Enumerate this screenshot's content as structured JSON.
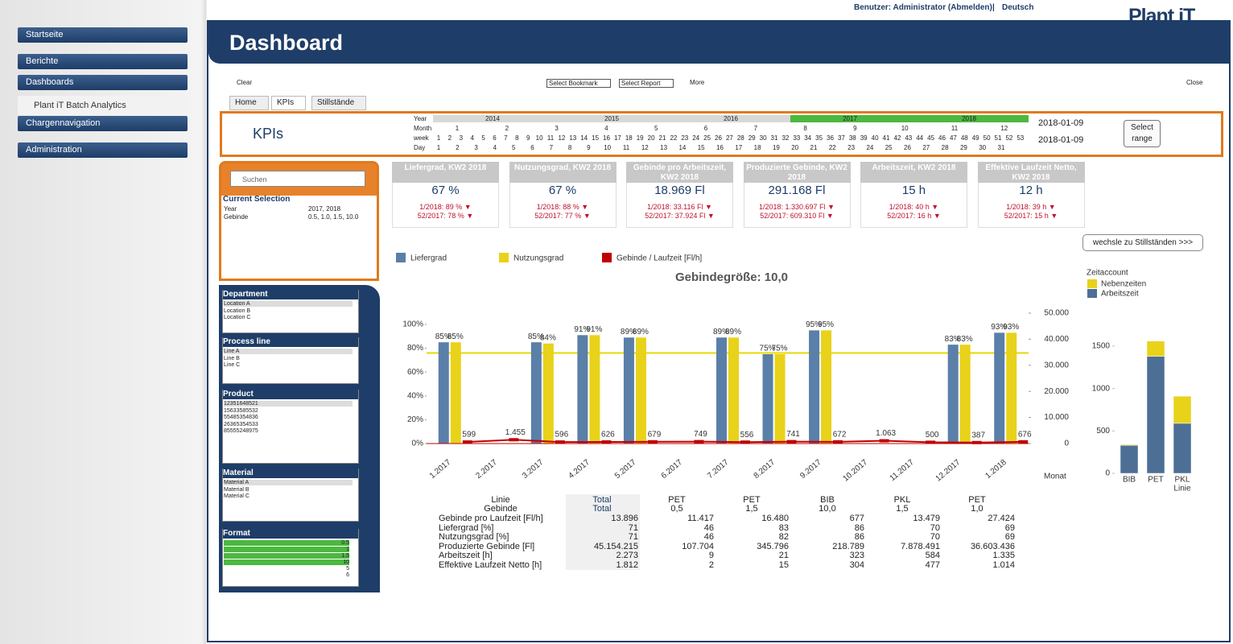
{
  "header": {
    "user": "Benutzer: Administrator (Abmelden)",
    "separator": "|",
    "language": "Deutsch",
    "logo": "Plant iT",
    "title": "Dashboard"
  },
  "nav": [
    "Startseite",
    "Berichte",
    "Dashboards",
    "Plant iT Batch Analytics",
    "Chargennavigation",
    "Administration"
  ],
  "toolbar": {
    "clear": "Clear",
    "bookmark": "Select Bookmark",
    "report": "Select Report",
    "more": "More",
    "close": "Close"
  },
  "tabs": [
    "Home",
    "KPIs",
    "Stillstände"
  ],
  "selection_bar": {
    "title": "KPIs",
    "row_labels": [
      "Year",
      "Month",
      "week",
      "Day"
    ],
    "years": [
      2014,
      2015,
      2016,
      2017,
      2018
    ],
    "months": [
      1,
      2,
      3,
      4,
      5,
      6,
      7,
      8,
      9,
      10,
      11,
      12
    ],
    "weeks": [
      1,
      2,
      3,
      4,
      5,
      6,
      7,
      8,
      9,
      10,
      11,
      12,
      13,
      14,
      15,
      16,
      17,
      18,
      19,
      20,
      21,
      22,
      23,
      24,
      25,
      26,
      27,
      28,
      29,
      30,
      31,
      32,
      33,
      34,
      35,
      36,
      37,
      38,
      39,
      40,
      41,
      42,
      43,
      44,
      45,
      46,
      47,
      48,
      49,
      50,
      51,
      52,
      53
    ],
    "days": [
      1,
      2,
      3,
      4,
      5,
      6,
      7,
      8,
      9,
      10,
      11,
      12,
      13,
      14,
      15,
      16,
      17,
      18,
      19,
      20,
      21,
      22,
      23,
      24,
      25,
      26,
      27,
      28,
      29,
      30,
      31
    ],
    "date_from": "2018-01-09",
    "date_to": "2018-01-09",
    "select_range": "Select range"
  },
  "search": "Suchen",
  "current_selection": {
    "title": "Current Selection",
    "rows": [
      [
        "Year",
        "2017, 2018"
      ],
      [
        "Gebinde",
        "0.5, 1.0, 1.5, 10.0"
      ]
    ]
  },
  "filters": [
    {
      "title": "Department",
      "items": [
        "Location A",
        "Location B",
        "Location C"
      ]
    },
    {
      "title": "Process line",
      "items": [
        "Line A",
        "Line B",
        "Line C"
      ]
    },
    {
      "title": "Product",
      "items": [
        "12351648521",
        "15633585532",
        "55485354836",
        "26365354533",
        "85555248975"
      ]
    },
    {
      "title": "Material",
      "items": [
        "Material A",
        "Material B",
        "Material C"
      ]
    },
    {
      "title": "Format",
      "items": [
        "0.5",
        "1",
        "1.5",
        "10",
        "5",
        "6"
      ]
    }
  ],
  "kpis": [
    {
      "title": "Liefergrad, KW2 2018",
      "value": "67 %",
      "prev1": "1/2018: 89 % ▼",
      "prev2": "52/2017: 78 % ▼"
    },
    {
      "title": "Nutzungsgrad, KW2 2018",
      "value": "67 %",
      "prev1": "1/2018: 88 % ▼",
      "prev2": "52/2017: 77 % ▼"
    },
    {
      "title": "Gebinde pro Arbeitszeit, KW2 2018",
      "value": "18.969 Fl",
      "prev1": "1/2018: 33.116 Fl ▼",
      "prev2": "52/2017: 37.924 Fl ▼"
    },
    {
      "title": "Produzierte Gebinde, KW2 2018",
      "value": "291.168 Fl",
      "prev1": "1/2018: 1.330.697 Fl ▼",
      "prev2": "52/2017: 609.310 Fl ▼"
    },
    {
      "title": "Arbeitszeit, KW2 2018",
      "value": "15 h",
      "prev1": "1/2018: 40 h ▼",
      "prev2": "52/2017: 16 h ▼"
    },
    {
      "title": "Effektive Laufzeit Netto, KW2 2018",
      "value": "12 h",
      "prev1": "1/2018: 39 h ▼",
      "prev2": "52/2017: 15 h ▼"
    }
  ],
  "switch_button": "wechsle zu Stillständen >>>",
  "chart_data": [
    {
      "type": "bar",
      "title": "Gebindegröße: 10,0",
      "x_label": "Monat",
      "legend": "top",
      "categories": [
        "1.2017",
        "2.2017",
        "3.2017",
        "4.2017",
        "5.2017",
        "6.2017",
        "7.2017",
        "8.2017",
        "9.2017",
        "10.2017",
        "11.2017",
        "12.2017",
        "1.2018"
      ],
      "series": [
        {
          "name": "Liefergrad",
          "color": "#5a7fa8",
          "values": [
            85,
            null,
            85,
            91,
            89,
            null,
            89,
            75,
            95,
            null,
            null,
            83,
            93
          ],
          "value_labels": [
            "85%",
            null,
            "85%",
            "91%",
            "89%",
            null,
            "89%",
            "75%",
            "95%",
            null,
            null,
            "83%",
            "93%"
          ]
        },
        {
          "name": "Nutzungsgrad",
          "color": "#e8d21a",
          "values": [
            85,
            null,
            84,
            91,
            89,
            null,
            89,
            75,
            95,
            null,
            null,
            83,
            93
          ],
          "value_labels": [
            "85%",
            null,
            "84%",
            "91%",
            "89%",
            null,
            "89%",
            "75%",
            "95%",
            null,
            null,
            "83%",
            "93%"
          ]
        },
        {
          "name": "Gebinde / Laufzeit [Fl/h]",
          "color": "#c00000",
          "axis": "y2",
          "values": [
            599,
            1455,
            596,
            626,
            679,
            749,
            556,
            741,
            672,
            1063,
            500,
            387,
            676
          ],
          "value_labels": [
            "599",
            "1.455",
            "596",
            "626",
            "679",
            "749",
            "556",
            "741",
            "672",
            "1.063",
            "500",
            "387",
            "676"
          ]
        }
      ],
      "target_line": {
        "value": 76,
        "color": "#e8d800"
      },
      "ylim": [
        0,
        100
      ],
      "yticks": [
        {
          "value": 0,
          "label": "0%"
        },
        {
          "value": 20,
          "label": "20%"
        },
        {
          "value": 40,
          "label": "40%"
        },
        {
          "value": 60,
          "label": "60%"
        },
        {
          "value": 80,
          "label": "80%"
        },
        {
          "value": 100,
          "label": "100%"
        }
      ],
      "y2lim": [
        0,
        50000
      ],
      "y2ticks": [
        0,
        {
          "value": 10000,
          "label": "10.000"
        },
        {
          "value": 20000,
          "label": "20.000"
        },
        {
          "value": 30000,
          "label": "30.000"
        },
        {
          "value": 40000,
          "label": "40.000"
        },
        {
          "value": 50000,
          "label": "50.000"
        }
      ]
    },
    {
      "type": "stacked_bar",
      "legend_title": "Zeitaccount",
      "x_label": "Linie",
      "categories": [
        "BIB",
        "PET",
        "PKL"
      ],
      "series": [
        {
          "name": "Arbeitszeit",
          "color": "#4d6f96",
          "values": [
            330,
            1380,
            590
          ]
        },
        {
          "name": "Nebenzeiten",
          "color": "#e8d21a",
          "values": [
            10,
            180,
            320
          ]
        }
      ],
      "ylim": [
        0,
        1750
      ],
      "yticks": [
        0,
        500,
        1000,
        1500
      ]
    }
  ],
  "table": {
    "header_rows": [
      [
        "Linie",
        "Total",
        "PET",
        "PET",
        "BIB",
        "PKL",
        "PET"
      ],
      [
        "Gebinde",
        "Total",
        "0,5",
        "1,5",
        "10,0",
        "1,5",
        "1,0"
      ]
    ],
    "rows": [
      [
        "Gebinde pro Laufzeit [Fl/h]",
        "13.896",
        "11.417",
        "16.480",
        "677",
        "13.479",
        "27.424"
      ],
      [
        "Liefergrad [%]",
        "71",
        "46",
        "83",
        "86",
        "70",
        "69"
      ],
      [
        "Nutzungsgrad [%]",
        "71",
        "46",
        "82",
        "86",
        "70",
        "69"
      ],
      [
        "Produzierte Gebinde [Fl]",
        "45.154.215",
        "107.704",
        "345.796",
        "218.789",
        "7.878.491",
        "36.603.436"
      ],
      [
        "Arbeitszeit [h]",
        "2.273",
        "9",
        "21",
        "323",
        "584",
        "1.335"
      ],
      [
        "Effektive Laufzeit Netto [h]",
        "1.812",
        "2",
        "15",
        "304",
        "477",
        "1.014"
      ]
    ]
  }
}
